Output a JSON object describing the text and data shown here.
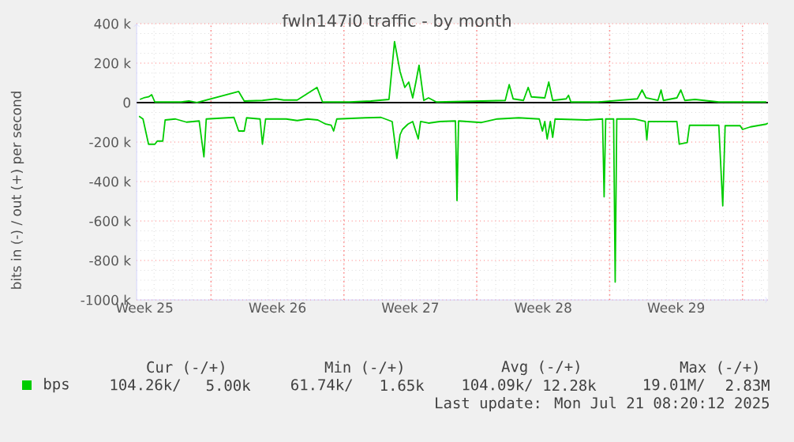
{
  "chart_data": {
    "type": "line",
    "title": "fwln147i0 traffic - by month",
    "ylabel": "bits in (-) / out (+) per second",
    "xlim": [
      "2025-06-18T02:00",
      "2025-07-21T08:20"
    ],
    "ylim": [
      -1000000,
      400000
    ],
    "xticks": [
      {
        "value": "2025-06-18T12:00",
        "label": "Week 25"
      },
      {
        "value": "2025-06-22",
        "label": null
      },
      {
        "value": "2025-06-25T12:00",
        "label": "Week 26"
      },
      {
        "value": "2025-06-29",
        "label": null
      },
      {
        "value": "2025-07-02T12:00",
        "label": "Week 27"
      },
      {
        "value": "2025-07-06",
        "label": null
      },
      {
        "value": "2025-07-09T12:00",
        "label": "Week 28"
      },
      {
        "value": "2025-07-13",
        "label": null
      },
      {
        "value": "2025-07-16T12:00",
        "label": "Week 29"
      },
      {
        "value": "2025-07-20",
        "label": null
      }
    ],
    "yticks": [
      {
        "value": -1000000,
        "label": "-1000 k"
      },
      {
        "value": -800000,
        "label": "-800 k"
      },
      {
        "value": -600000,
        "label": "-600 k"
      },
      {
        "value": -400000,
        "label": "-400 k"
      },
      {
        "value": -200000,
        "label": "-200 k"
      },
      {
        "value": 0,
        "label": "0"
      },
      {
        "value": 200000,
        "label": "200 k"
      },
      {
        "value": 400000,
        "label": "400 k"
      }
    ],
    "grid": true,
    "legend": "bottom",
    "line_style": "solid",
    "marker": "none",
    "ref_lines": [
      {
        "axis": "y",
        "value": 0,
        "color": "#000000"
      }
    ],
    "series": [
      {
        "name": "bps",
        "color": "#00cc00",
        "x": [
          "2025-06-18T06:00",
          "2025-06-18T11:00",
          "2025-06-18T17:00",
          "2025-06-18T21:00",
          "2025-06-19T01:00",
          "2025-06-20T10:00",
          "2025-06-20T20:00",
          "2025-06-21T06:00",
          "2025-06-23T11:00",
          "2025-06-23T18:00",
          "2025-06-24T17:00",
          "2025-06-25T10:00",
          "2025-06-25T20:00",
          "2025-06-26T13:00",
          "2025-06-27T14:00",
          "2025-06-27T21:00",
          "2025-06-29T07:00",
          "2025-06-30T10:00",
          "2025-07-01T09:00",
          "2025-07-01T16:00",
          "2025-07-01T23:00",
          "2025-07-02T05:00",
          "2025-07-02T10:00",
          "2025-07-02T15:00",
          "2025-07-02T19:00",
          "2025-07-02T23:00",
          "2025-07-03T05:00",
          "2025-07-03T11:00",
          "2025-07-03T21:00",
          "2025-07-06T06:00",
          "2025-07-07T12:00",
          "2025-07-07T17:00",
          "2025-07-07T22:00",
          "2025-07-08T11:00",
          "2025-07-08T17:00",
          "2025-07-08T21:00",
          "2025-07-09T14:00",
          "2025-07-09T19:00",
          "2025-07-10T00:00",
          "2025-07-10T17:00",
          "2025-07-10T20:00",
          "2025-07-10T23:00",
          "2025-07-12T09:00",
          "2025-07-14T11:00",
          "2025-07-14T17:00",
          "2025-07-14T22:00",
          "2025-07-15T13:00",
          "2025-07-15T17:00",
          "2025-07-15T20:00",
          "2025-07-16T13:00",
          "2025-07-16T18:00",
          "2025-07-16T23:00",
          "2025-07-17T12:00",
          "2025-07-18T18:00",
          "2025-07-21T06:00"
        ],
        "values": [
          16000,
          24000,
          29000,
          40000,
          3000,
          3000,
          8000,
          0,
          56000,
          8000,
          11000,
          19000,
          13000,
          13000,
          77000,
          3000,
          3000,
          8000,
          16000,
          309000,
          157000,
          77000,
          104000,
          24000,
          104000,
          189000,
          11000,
          24000,
          3000,
          8000,
          11000,
          91000,
          19000,
          11000,
          77000,
          29000,
          24000,
          104000,
          11000,
          19000,
          37000,
          3000,
          3000,
          19000,
          64000,
          24000,
          11000,
          64000,
          11000,
          24000,
          64000,
          11000,
          16000,
          3000,
          3000
        ]
      },
      {
        "color": "#00cc00",
        "x": [
          "2025-06-18T05:00",
          "2025-06-18T10:00",
          "2025-06-18T17:00",
          "2025-06-19T01:00",
          "2025-06-19T04:00",
          "2025-06-19T11:00",
          "2025-06-19T14:00",
          "2025-06-20T03:00",
          "2025-06-20T17:00",
          "2025-06-21T09:00",
          "2025-06-21T15:00",
          "2025-06-21T18:00",
          "2025-06-23T05:00",
          "2025-06-23T11:00",
          "2025-06-23T18:00",
          "2025-06-23T21:00",
          "2025-06-24T14:00",
          "2025-06-24T17:00",
          "2025-06-24T21:00",
          "2025-06-25T23:00",
          "2025-06-26T13:00",
          "2025-06-27T02:00",
          "2025-06-27T15:00",
          "2025-06-28T01:00",
          "2025-06-28T08:00",
          "2025-06-28T11:00",
          "2025-06-28T15:00",
          "2025-06-30T03:00",
          "2025-06-30T23:00",
          "2025-07-01T13:00",
          "2025-07-01T16:00",
          "2025-07-01T19:00",
          "2025-07-01T23:00",
          "2025-07-02T02:00",
          "2025-07-02T09:00",
          "2025-07-02T15:00",
          "2025-07-02T22:00",
          "2025-07-03T01:00",
          "2025-07-03T11:00",
          "2025-07-04T01:00",
          "2025-07-04T21:00",
          "2025-07-04T23:00",
          "2025-07-05T01:00",
          "2025-07-06T06:00",
          "2025-07-07T02:00",
          "2025-07-08T05:00",
          "2025-07-09T07:00",
          "2025-07-09T11:00",
          "2025-07-09T14:00",
          "2025-07-09T17:00",
          "2025-07-09T21:00",
          "2025-07-10T00:00",
          "2025-07-10T03:00",
          "2025-07-11T19:00",
          "2025-07-12T15:00",
          "2025-07-12T17:00",
          "2025-07-12T19:00",
          "2025-07-13T05:00",
          "2025-07-13T07:00",
          "2025-07-13T09:00",
          "2025-07-14T07:00",
          "2025-07-14T21:00",
          "2025-07-14T23:00",
          "2025-07-15T01:00",
          "2025-07-16T13:00",
          "2025-07-16T16:00",
          "2025-07-17T02:00",
          "2025-07-17T05:00",
          "2025-07-18T18:00",
          "2025-07-18T23:00",
          "2025-07-19T02:00",
          "2025-07-19T21:00",
          "2025-07-20T00:00",
          "2025-07-20T10:00",
          "2025-07-21T06:00",
          "2025-07-21T08:00"
        ],
        "values": [
          -69000,
          -83000,
          -211000,
          -211000,
          -195000,
          -195000,
          -88000,
          -83000,
          -99000,
          -93000,
          -275000,
          -83000,
          -75000,
          -144000,
          -144000,
          -77000,
          -83000,
          -211000,
          -83000,
          -83000,
          -91000,
          -83000,
          -88000,
          -109000,
          -115000,
          -144000,
          -83000,
          -77000,
          -75000,
          -96000,
          -189000,
          -283000,
          -163000,
          -136000,
          -109000,
          -96000,
          -184000,
          -96000,
          -104000,
          -96000,
          -93000,
          -496000,
          -93000,
          -101000,
          -83000,
          -77000,
          -83000,
          -144000,
          -96000,
          -184000,
          -96000,
          -176000,
          -83000,
          -88000,
          -83000,
          -477000,
          -83000,
          -83000,
          -909000,
          -83000,
          -83000,
          -96000,
          -189000,
          -96000,
          -96000,
          -211000,
          -203000,
          -115000,
          -115000,
          -523000,
          -117000,
          -117000,
          -136000,
          -123000,
          -109000,
          -104000
        ]
      }
    ],
    "annotations": [
      "Cur (-/+)",
      "Min (-/+)",
      "Avg (-/+)",
      "Max (-/+)",
      "104.26k/",
      "5.00k",
      "61.74k/",
      "1.65k",
      "104.09k/",
      "12.28k",
      "19.01M/",
      "2.83M",
      "Last update: Mon Jul 21 08:20:12 2025"
    ]
  }
}
